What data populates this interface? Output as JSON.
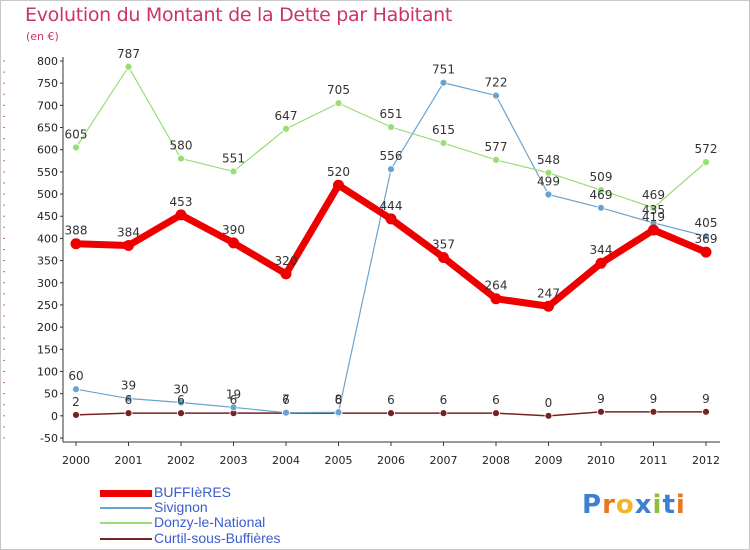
{
  "title": "Evolution du Montant de la Dette par Habitant",
  "subtitle": "(en €)",
  "logo": "Proxiti",
  "chart_data": {
    "type": "line",
    "title": "Evolution du Montant de la Dette par Habitant",
    "ylabel": "(en €)",
    "xlabel": "",
    "ylim": [
      -50,
      800
    ],
    "yticks": [
      -50,
      0,
      50,
      100,
      150,
      200,
      250,
      300,
      350,
      400,
      450,
      500,
      550,
      600,
      650,
      700,
      750,
      800
    ],
    "grid": false,
    "legend_position": "bottom-left",
    "x": [
      "2000",
      "2001",
      "2002",
      "2003",
      "2004",
      "2005",
      "2006",
      "2007",
      "2008",
      "2009",
      "2010",
      "2011",
      "2012"
    ],
    "series": [
      {
        "name": "BUFFIèRES",
        "color": "#ee0000",
        "values": [
          388,
          384,
          453,
          390,
          320,
          520,
          444,
          357,
          264,
          247,
          344,
          419,
          369
        ],
        "labels": [
          "388",
          "384",
          "453",
          "390",
          "320",
          "520",
          "444",
          "357",
          "264",
          "247",
          "344",
          "419",
          "369"
        ]
      },
      {
        "name": "Sivignon",
        "color": "#6ba3cf",
        "values": [
          60,
          39,
          30,
          19,
          7,
          8,
          556,
          751,
          722,
          499,
          469,
          435,
          405
        ],
        "labels": [
          "60",
          "39",
          "30",
          "19",
          "7",
          "8",
          "556",
          "751",
          "722",
          "499",
          "469",
          "435",
          "405"
        ]
      },
      {
        "name": "Donzy-le-National",
        "color": "#99dd77",
        "values": [
          605,
          787,
          580,
          551,
          647,
          705,
          651,
          615,
          577,
          548,
          509,
          469,
          572
        ],
        "labels": [
          "605",
          "787",
          "580",
          "551",
          "647",
          "705",
          "651",
          "615",
          "577",
          "548",
          "509",
          "469",
          "572"
        ]
      },
      {
        "name": "Curtil-sous-Buffières",
        "color": "#772222",
        "values": [
          2,
          6,
          6,
          6,
          6,
          6,
          6,
          6,
          6,
          0,
          9,
          9,
          9
        ],
        "labels": [
          "2",
          "6",
          "6",
          "6",
          "6",
          "6",
          "6",
          "6",
          "6",
          "0",
          "9",
          "9",
          "9"
        ]
      }
    ]
  }
}
